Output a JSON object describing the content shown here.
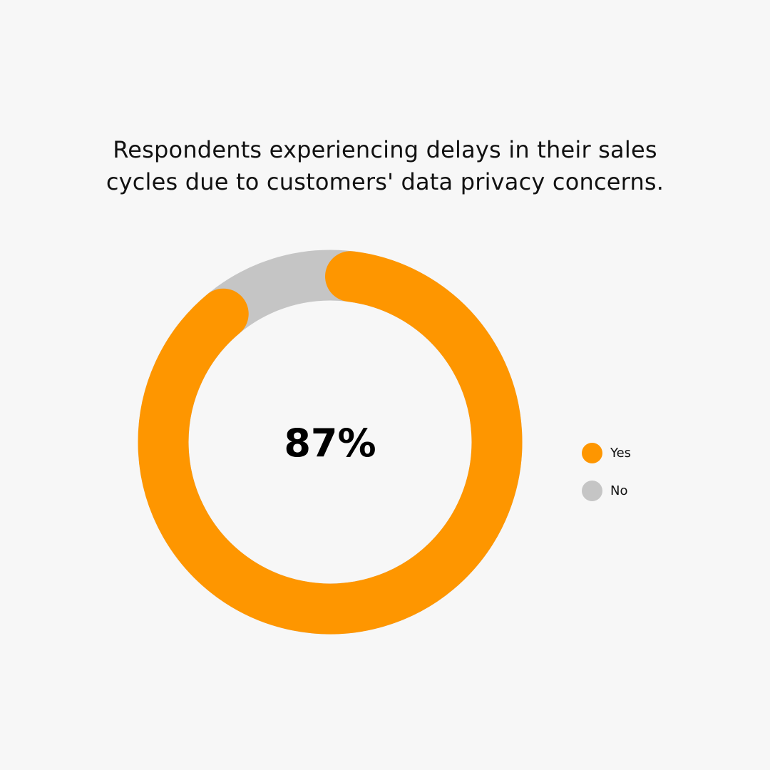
{
  "chart_data": {
    "type": "pie",
    "title_lines": [
      "Respondents experiencing delays in their sales",
      "cycles due to customers' data privacy concerns."
    ],
    "slices": [
      {
        "label": "Yes",
        "value": 87,
        "color": "#fe9600"
      },
      {
        "label": "No",
        "value": 13,
        "color": "#c5c5c5"
      }
    ],
    "center_label": "87%",
    "legend_position": "right"
  }
}
